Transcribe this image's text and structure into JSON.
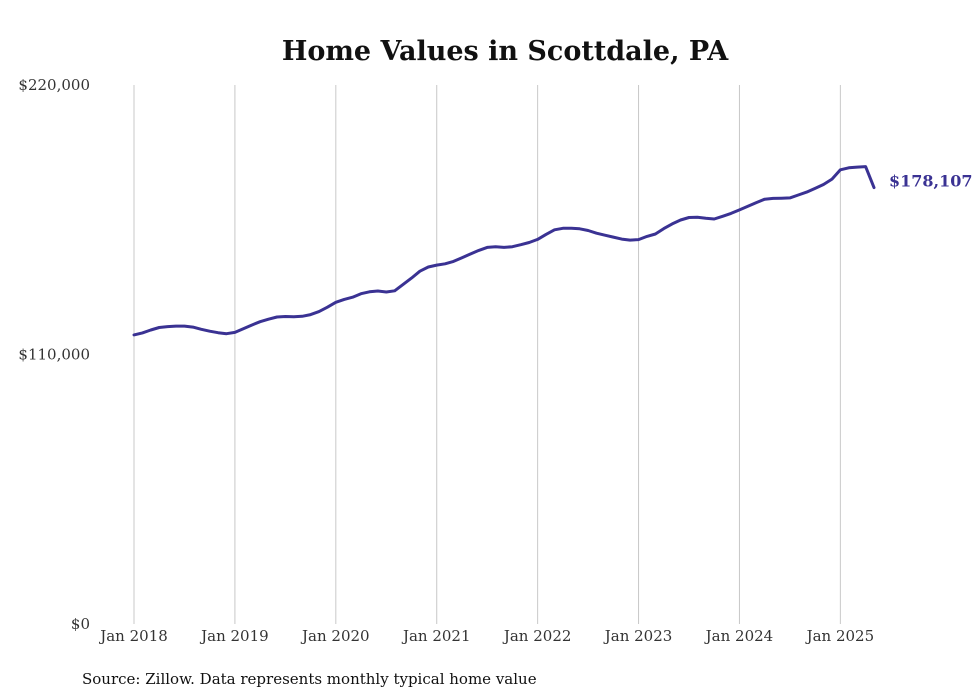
{
  "chart_data": {
    "type": "line",
    "title": "Home Values in Scottdale, PA",
    "source_note": "Source: Zillow. Data represents monthly typical home value",
    "xlabel": "",
    "ylabel": "",
    "ylim": [
      0,
      220000
    ],
    "y_ticks": [
      {
        "value": 0,
        "label": "$0"
      },
      {
        "value": 110000,
        "label": "$110,000"
      },
      {
        "value": 220000,
        "label": "$220,000"
      }
    ],
    "x_ticks": [
      {
        "value": "2018-01",
        "label": "Jan 2018"
      },
      {
        "value": "2019-01",
        "label": "Jan 2019"
      },
      {
        "value": "2020-01",
        "label": "Jan 2020"
      },
      {
        "value": "2021-01",
        "label": "Jan 2021"
      },
      {
        "value": "2022-01",
        "label": "Jan 2022"
      },
      {
        "value": "2023-01",
        "label": "Jan 2023"
      },
      {
        "value": "2024-01",
        "label": "Jan 2024"
      },
      {
        "value": "2025-01",
        "label": "Jan 2025"
      }
    ],
    "xlim": [
      "2018-01",
      "2025-05"
    ],
    "grid": {
      "vertical": true,
      "horizontal": false
    },
    "line_color": "#3a3293",
    "end_label": "$178,107",
    "series": [
      {
        "x": [
          "2018-01",
          "2018-02",
          "2018-03",
          "2018-04",
          "2018-05",
          "2018-06",
          "2018-07",
          "2018-08",
          "2018-09",
          "2018-10",
          "2018-11",
          "2018-12",
          "2019-01",
          "2019-02",
          "2019-03",
          "2019-04",
          "2019-05",
          "2019-06",
          "2019-07",
          "2019-08",
          "2019-09",
          "2019-10",
          "2019-11",
          "2019-12",
          "2020-01",
          "2020-02",
          "2020-03",
          "2020-04",
          "2020-05",
          "2020-06",
          "2020-07",
          "2020-08",
          "2020-09",
          "2020-10",
          "2020-11",
          "2020-12",
          "2021-01",
          "2021-02",
          "2021-03",
          "2021-04",
          "2021-05",
          "2021-06",
          "2021-07",
          "2021-08",
          "2021-09",
          "2021-10",
          "2021-11",
          "2021-12",
          "2022-01",
          "2022-02",
          "2022-03",
          "2022-04",
          "2022-05",
          "2022-06",
          "2022-07",
          "2022-08",
          "2022-09",
          "2022-10",
          "2022-11",
          "2022-12",
          "2023-01",
          "2023-02",
          "2023-03",
          "2023-04",
          "2023-05",
          "2023-06",
          "2023-07",
          "2023-08",
          "2023-09",
          "2023-10",
          "2023-11",
          "2023-12",
          "2024-01",
          "2024-02",
          "2024-03",
          "2024-04",
          "2024-05",
          "2024-06",
          "2024-07",
          "2024-08",
          "2024-09",
          "2024-10",
          "2024-11",
          "2024-12",
          "2025-01",
          "2025-02",
          "2025-03",
          "2025-04",
          "2025-05"
        ],
        "values": [
          118000,
          118800,
          120000,
          121000,
          121400,
          121600,
          121600,
          121200,
          120300,
          119500,
          118900,
          118500,
          119000,
          120500,
          122000,
          123400,
          124400,
          125300,
          125500,
          125400,
          125600,
          126300,
          127500,
          129300,
          131300,
          132500,
          133400,
          134800,
          135600,
          135900,
          135500,
          136000,
          138600,
          141200,
          144000,
          145700,
          146500,
          147000,
          148000,
          149500,
          151000,
          152500,
          153700,
          154000,
          153700,
          154000,
          154800,
          155700,
          157000,
          159000,
          160900,
          161500,
          161500,
          161300,
          160600,
          159500,
          158700,
          157900,
          157100,
          156700,
          156900,
          158200,
          159200,
          161400,
          163300,
          164900,
          165900,
          166000,
          165600,
          165300,
          166400,
          167600,
          169000,
          170500,
          172000,
          173400,
          173700,
          173800,
          173900,
          175100,
          176300,
          177800,
          179400,
          181600,
          185400,
          186200,
          186500,
          186700,
          178107
        ]
      }
    ]
  }
}
